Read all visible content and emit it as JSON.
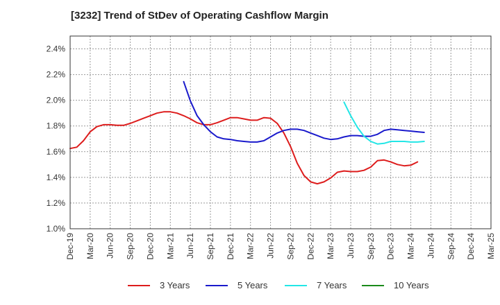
{
  "title": "[3232]  Trend of StDev of Operating Cashflow Margin",
  "chart_data": {
    "type": "line",
    "title": "[3232]  Trend of StDev of Operating Cashflow Margin",
    "xlabel": "",
    "ylabel": "",
    "ylim": [
      1.0,
      2.5
    ],
    "y_ticks": [
      "1.0%",
      "1.2%",
      "1.4%",
      "1.6%",
      "1.8%",
      "2.0%",
      "2.2%",
      "2.4%"
    ],
    "y_tick_values": [
      1.0,
      1.2,
      1.4,
      1.6,
      1.8,
      2.0,
      2.2,
      2.4
    ],
    "x_ticks": [
      "Dec-19",
      "Mar-20",
      "Jun-20",
      "Sep-20",
      "Dec-20",
      "Mar-21",
      "Jun-21",
      "Sep-21",
      "Dec-21",
      "Mar-22",
      "Jun-22",
      "Sep-22",
      "Dec-22",
      "Mar-23",
      "Jun-23",
      "Sep-23",
      "Dec-23",
      "Mar-24",
      "Jun-24",
      "Sep-24",
      "Dec-24",
      "Mar-25"
    ],
    "grid": true,
    "legend_position": "bottom",
    "series": [
      {
        "name": "3 Years",
        "color": "#dd1c1c",
        "start_month_index": 0,
        "values": [
          1.625,
          1.635,
          1.685,
          1.755,
          1.795,
          1.81,
          1.81,
          1.805,
          1.805,
          1.82,
          1.84,
          1.86,
          1.88,
          1.9,
          1.91,
          1.91,
          1.9,
          1.88,
          1.855,
          1.825,
          1.81,
          1.81,
          1.825,
          1.845,
          1.865,
          1.865,
          1.855,
          1.845,
          1.845,
          1.865,
          1.86,
          1.82,
          1.745,
          1.64,
          1.51,
          1.415,
          1.365,
          1.35,
          1.365,
          1.395,
          1.44,
          1.45,
          1.445,
          1.445,
          1.455,
          1.48,
          1.53,
          1.535,
          1.52,
          1.5,
          1.49,
          1.495,
          1.52
        ]
      },
      {
        "name": "5 Years",
        "color": "#1a1acc",
        "start_month_index": 17,
        "values": [
          2.145,
          1.995,
          1.88,
          1.81,
          1.755,
          1.715,
          1.7,
          1.695,
          1.685,
          1.68,
          1.675,
          1.675,
          1.685,
          1.715,
          1.745,
          1.765,
          1.775,
          1.775,
          1.765,
          1.745,
          1.725,
          1.705,
          1.695,
          1.7,
          1.715,
          1.725,
          1.725,
          1.72,
          1.72,
          1.735,
          1.765,
          1.775,
          1.77,
          1.765,
          1.76,
          1.755,
          1.75
        ]
      },
      {
        "name": "7 Years",
        "color": "#22e6e6",
        "start_month_index": 41,
        "values": [
          1.985,
          1.88,
          1.79,
          1.72,
          1.68,
          1.66,
          1.665,
          1.68,
          1.68,
          1.68,
          1.675,
          1.675,
          1.68
        ]
      },
      {
        "name": "10 Years",
        "color": "#1a8a1a",
        "start_month_index": 0,
        "values": []
      }
    ]
  }
}
